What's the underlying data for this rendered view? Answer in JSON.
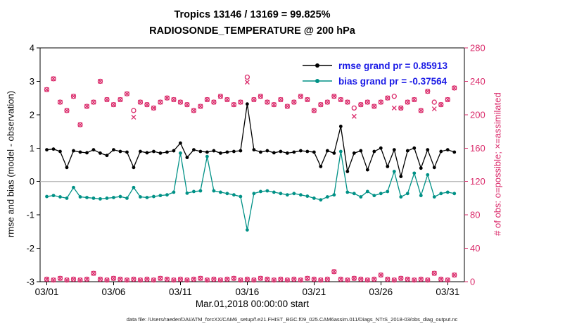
{
  "title": {
    "line1": "Tropics 13146 / 13169 = 99.825%",
    "line2": "RADIOSONDE_TEMPERATURE @ 200 hPa"
  },
  "legend": {
    "rmse": "rmse grand pr = 0.85913",
    "bias": "bias grand pr = -0.37564",
    "text_color": "#1a1ae6"
  },
  "axes": {
    "left": {
      "label": "rmse and bias (model - observation)",
      "ticks": [
        -3,
        -2,
        -1,
        0,
        1,
        2,
        3,
        4
      ],
      "range": [
        -3,
        4
      ],
      "color": "#000000"
    },
    "right": {
      "label": "# of obs: o=possible; ×=assimilated",
      "ticks": [
        0,
        40,
        80,
        120,
        160,
        200,
        240,
        280
      ],
      "range": [
        0,
        280
      ],
      "color": "#da2a6a"
    },
    "x": {
      "label": "Mar.01,2018 00:00:00 start",
      "tick_labels": [
        "03/01",
        "03/06",
        "03/11",
        "03/16",
        "03/21",
        "03/26",
        "03/31"
      ],
      "tick_positions": [
        0,
        10,
        20,
        30,
        40,
        50,
        60
      ]
    }
  },
  "footer": "data file: /Users/raeder/DAI/ATM_forcXX/CAM6_setup/f.e21.FHIST_BGC.f09_025.CAM6assim.011/Diags_NTrS_2018-03/obs_diag_output.nc",
  "chart_data": {
    "type": "line",
    "title": "Tropics 13146 / 13169 = 99.825% — RADIOSONDE_TEMPERATURE @ 200 hPa",
    "x": {
      "range": [
        -1,
        62.5
      ],
      "samples_per_day": 2,
      "start": "Mar.01,2018 00:00:00",
      "tick_positions": [
        0,
        10,
        20,
        30,
        40,
        50,
        60
      ],
      "tick_labels": [
        "03/01",
        "03/06",
        "03/11",
        "03/16",
        "03/21",
        "03/26",
        "03/31"
      ]
    },
    "y_left": {
      "label": "rmse and bias (model - observation)",
      "range": [
        -3,
        4
      ],
      "ticks": [
        -3,
        -2,
        -1,
        0,
        1,
        2,
        3,
        4
      ]
    },
    "y_right": {
      "label": "# of obs: o=possible; ×=assimilated",
      "range": [
        0,
        280
      ],
      "ticks": [
        0,
        40,
        80,
        120,
        160,
        200,
        240,
        280
      ],
      "color": "#da2a6a"
    },
    "grand_rmse": 0.85913,
    "grand_bias": -0.37564,
    "zero_line": {
      "value": 0,
      "color": "#b3b3b3"
    },
    "series": [
      {
        "name": "rmse",
        "legend": "rmse grand pr = 0.85913",
        "axis": "left",
        "color": "#000000",
        "marker": "dot",
        "values": [
          0.95,
          0.97,
          0.9,
          0.42,
          0.92,
          0.88,
          0.86,
          0.95,
          0.85,
          0.78,
          0.95,
          0.9,
          0.88,
          0.42,
          0.9,
          0.86,
          0.9,
          0.85,
          0.88,
          0.92,
          1.15,
          0.72,
          0.95,
          0.9,
          0.88,
          0.92,
          0.85,
          0.88,
          0.9,
          0.92,
          2.32,
          0.95,
          0.88,
          0.92,
          0.86,
          0.9,
          0.85,
          0.88,
          0.92,
          0.9,
          0.88,
          0.45,
          0.92,
          0.85,
          1.65,
          0.3,
          0.85,
          0.92,
          0.35,
          0.9,
          1.0,
          0.45,
          0.95,
          0.15,
          0.92,
          1.0,
          0.4,
          0.95,
          0.42,
          0.9,
          0.95,
          0.88
        ]
      },
      {
        "name": "bias",
        "legend": "bias grand pr = -0.37564",
        "axis": "left",
        "color": "#009186",
        "marker": "dot",
        "values": [
          -0.45,
          -0.42,
          -0.46,
          -0.5,
          -0.18,
          -0.46,
          -0.48,
          -0.5,
          -0.52,
          -0.5,
          -0.48,
          -0.45,
          -0.5,
          -0.18,
          -0.46,
          -0.48,
          -0.45,
          -0.42,
          -0.4,
          -0.32,
          0.85,
          -0.35,
          -0.3,
          -0.28,
          0.75,
          -0.28,
          -0.32,
          -0.36,
          -0.4,
          -0.45,
          -1.45,
          -0.36,
          -0.3,
          -0.28,
          -0.32,
          -0.36,
          -0.4,
          -0.36,
          -0.4,
          -0.44,
          -0.5,
          -0.55,
          -0.46,
          -0.4,
          0.9,
          -0.32,
          -0.36,
          -0.46,
          -0.3,
          -0.42,
          -0.36,
          -0.3,
          0.3,
          -0.46,
          -0.36,
          0.25,
          -0.42,
          0.2,
          -0.46,
          -0.36,
          -0.32,
          -0.36
        ]
      },
      {
        "name": "obs_possible",
        "axis": "right",
        "color": "#da2a6a",
        "marker": "circle",
        "values": [
          230,
          243,
          215,
          205,
          222,
          188,
          210,
          215,
          240,
          218,
          212,
          218,
          225,
          205,
          215,
          212,
          208,
          215,
          220,
          218,
          215,
          212,
          205,
          210,
          218,
          215,
          222,
          218,
          212,
          215,
          245,
          218,
          222,
          215,
          212,
          218,
          210,
          215,
          222,
          218,
          205,
          212,
          215,
          222,
          218,
          215,
          208,
          212,
          215,
          210,
          215,
          220,
          222,
          208,
          215,
          218,
          205,
          228,
          215,
          212,
          218,
          232
        ]
      },
      {
        "name": "obs_assimilated",
        "axis": "right",
        "color": "#da2a6a",
        "marker": "x",
        "values": [
          230,
          243,
          215,
          205,
          222,
          188,
          210,
          215,
          240,
          218,
          212,
          218,
          225,
          197,
          215,
          212,
          208,
          215,
          220,
          218,
          215,
          212,
          205,
          210,
          218,
          215,
          222,
          218,
          212,
          215,
          239,
          218,
          222,
          215,
          212,
          218,
          210,
          215,
          222,
          218,
          205,
          212,
          215,
          222,
          218,
          215,
          198,
          212,
          215,
          210,
          215,
          220,
          208,
          208,
          215,
          218,
          205,
          228,
          207,
          212,
          218,
          232
        ]
      },
      {
        "name": "obs_low_cluster",
        "axis": "right",
        "color": "#da2a6a",
        "marker": "ox",
        "values": [
          3,
          2,
          4,
          2,
          3,
          2,
          3,
          10,
          3,
          2,
          4,
          3,
          2,
          3,
          2,
          3,
          2,
          4,
          3,
          2,
          3,
          2,
          3,
          4,
          2,
          3,
          2,
          3,
          4,
          2,
          3,
          2,
          4,
          3,
          2,
          3,
          2,
          3,
          2,
          4,
          3,
          2,
          3,
          12,
          3,
          2,
          4,
          3,
          2,
          3,
          8,
          3,
          2,
          4,
          3,
          2,
          3,
          2,
          10,
          3,
          2,
          8
        ]
      }
    ]
  }
}
